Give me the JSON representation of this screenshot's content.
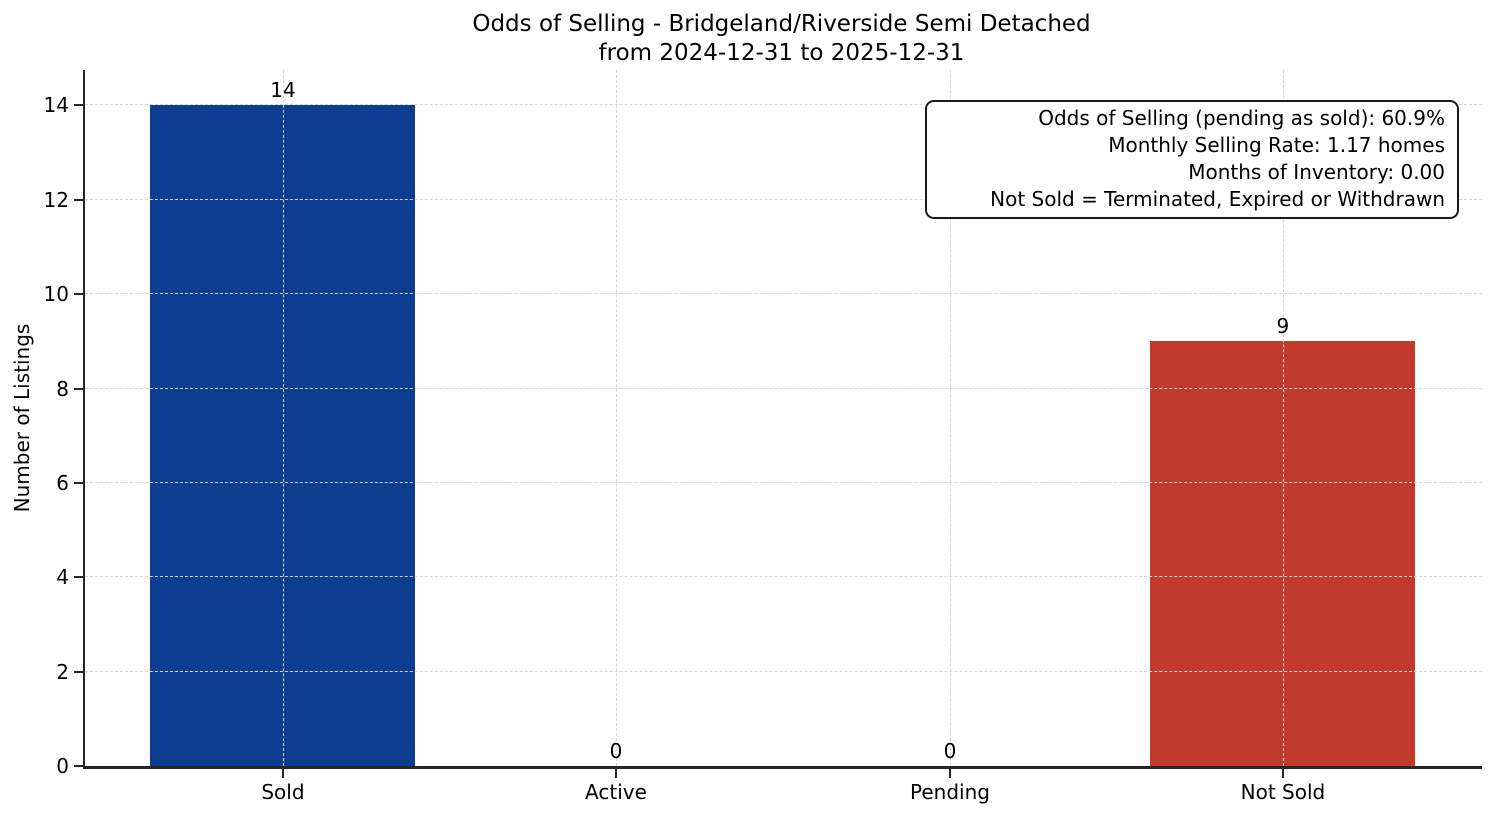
{
  "title": {
    "line1": "Odds of Selling - Bridgeland/Riverside Semi Detached",
    "line2": "from 2024-12-31 to 2025-12-31"
  },
  "annotation": {
    "lines": [
      "Odds of Selling (pending as sold): 60.9%",
      "Monthly Selling Rate: 1.17 homes",
      "Months of Inventory: 0.00",
      "Not Sold = Terminated, Expired or Withdrawn"
    ]
  },
  "chart_data": {
    "type": "bar",
    "title": "Odds of Selling - Bridgeland/Riverside Semi Detached\nfrom 2024-12-31 to 2025-12-31",
    "categories": [
      "Sold",
      "Active",
      "Pending",
      "Not Sold"
    ],
    "values": [
      14,
      0,
      0,
      9
    ],
    "bar_labels": [
      "14",
      "0",
      "0",
      "9"
    ],
    "bar_colors": [
      "#0d3d91",
      "#0d3d91",
      "#0d3d91",
      "#c13a2b"
    ],
    "xlabel": "",
    "ylabel": "Number of Listings",
    "ylim": [
      0,
      14.75
    ],
    "yticks": [
      0,
      2,
      4,
      6,
      8,
      10,
      12,
      14
    ],
    "grid": "dashed, both axes, above bars",
    "legend": "none"
  },
  "colors": {
    "sold_bar": "#0d3d91",
    "not_sold_bar": "#c13a2b",
    "spine": "#262626",
    "grid": "#d5d5d5",
    "text": "#000000",
    "background": "#ffffff"
  }
}
